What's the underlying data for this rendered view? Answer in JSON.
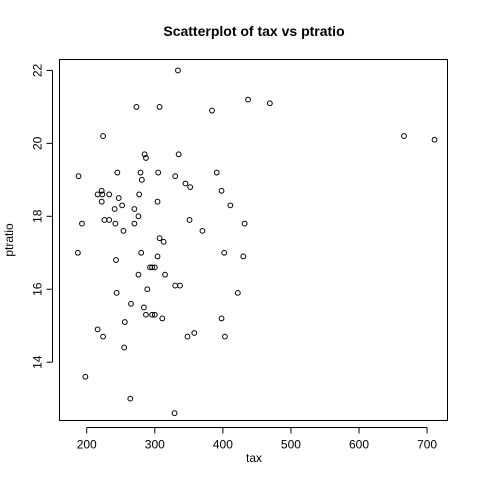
{
  "chart_data": {
    "type": "scatter",
    "title": "Scatterplot of tax vs ptratio",
    "xlabel": "tax",
    "ylabel": "ptratio",
    "xlim": [
      160,
      730
    ],
    "ylim": [
      12.4,
      22.3
    ],
    "xticks": [
      200,
      300,
      400,
      500,
      600,
      700
    ],
    "yticks": [
      14,
      16,
      18,
      20,
      22
    ],
    "grid": false,
    "points": [
      {
        "x": 187,
        "y": 17.0
      },
      {
        "x": 188,
        "y": 19.1
      },
      {
        "x": 193,
        "y": 17.8
      },
      {
        "x": 198,
        "y": 13.6
      },
      {
        "x": 216,
        "y": 14.9
      },
      {
        "x": 216,
        "y": 18.6
      },
      {
        "x": 222,
        "y": 18.4
      },
      {
        "x": 222,
        "y": 18.7
      },
      {
        "x": 223,
        "y": 18.6
      },
      {
        "x": 224,
        "y": 20.2
      },
      {
        "x": 224,
        "y": 14.7
      },
      {
        "x": 226,
        "y": 17.9
      },
      {
        "x": 233,
        "y": 17.9
      },
      {
        "x": 233,
        "y": 18.6
      },
      {
        "x": 241,
        "y": 18.2
      },
      {
        "x": 242,
        "y": 17.8
      },
      {
        "x": 243,
        "y": 16.8
      },
      {
        "x": 244,
        "y": 15.9
      },
      {
        "x": 245,
        "y": 19.2
      },
      {
        "x": 247,
        "y": 18.5
      },
      {
        "x": 252,
        "y": 18.3
      },
      {
        "x": 254,
        "y": 17.6
      },
      {
        "x": 255,
        "y": 14.4
      },
      {
        "x": 256,
        "y": 15.1
      },
      {
        "x": 264,
        "y": 13.0
      },
      {
        "x": 265,
        "y": 15.6
      },
      {
        "x": 270,
        "y": 17.8
      },
      {
        "x": 270,
        "y": 18.2
      },
      {
        "x": 273,
        "y": 21.0
      },
      {
        "x": 276,
        "y": 18.0
      },
      {
        "x": 276,
        "y": 16.4
      },
      {
        "x": 277,
        "y": 18.6
      },
      {
        "x": 279,
        "y": 19.2
      },
      {
        "x": 280,
        "y": 17.0
      },
      {
        "x": 281,
        "y": 19.0
      },
      {
        "x": 284,
        "y": 15.5
      },
      {
        "x": 285,
        "y": 19.7
      },
      {
        "x": 287,
        "y": 15.3
      },
      {
        "x": 287,
        "y": 19.6
      },
      {
        "x": 289,
        "y": 16.0
      },
      {
        "x": 293,
        "y": 16.6
      },
      {
        "x": 296,
        "y": 15.3
      },
      {
        "x": 296,
        "y": 16.6
      },
      {
        "x": 300,
        "y": 16.6
      },
      {
        "x": 300,
        "y": 15.3
      },
      {
        "x": 304,
        "y": 16.9
      },
      {
        "x": 304,
        "y": 18.4
      },
      {
        "x": 305,
        "y": 19.2
      },
      {
        "x": 307,
        "y": 21.0
      },
      {
        "x": 307,
        "y": 17.4
      },
      {
        "x": 311,
        "y": 15.2
      },
      {
        "x": 313,
        "y": 17.3
      },
      {
        "x": 315,
        "y": 16.4
      },
      {
        "x": 329,
        "y": 12.6
      },
      {
        "x": 330,
        "y": 16.1
      },
      {
        "x": 330,
        "y": 19.1
      },
      {
        "x": 334,
        "y": 22.0
      },
      {
        "x": 335,
        "y": 19.7
      },
      {
        "x": 337,
        "y": 16.1
      },
      {
        "x": 345,
        "y": 18.9
      },
      {
        "x": 348,
        "y": 14.7
      },
      {
        "x": 351,
        "y": 17.9
      },
      {
        "x": 352,
        "y": 18.8
      },
      {
        "x": 358,
        "y": 14.8
      },
      {
        "x": 370,
        "y": 17.6
      },
      {
        "x": 384,
        "y": 20.9
      },
      {
        "x": 391,
        "y": 19.2
      },
      {
        "x": 398,
        "y": 18.7
      },
      {
        "x": 398,
        "y": 15.2
      },
      {
        "x": 402,
        "y": 17.0
      },
      {
        "x": 403,
        "y": 14.7
      },
      {
        "x": 411,
        "y": 18.3
      },
      {
        "x": 422,
        "y": 15.9
      },
      {
        "x": 430,
        "y": 16.9
      },
      {
        "x": 432,
        "y": 17.8
      },
      {
        "x": 437,
        "y": 21.2
      },
      {
        "x": 469,
        "y": 21.1
      },
      {
        "x": 666,
        "y": 20.2
      },
      {
        "x": 711,
        "y": 20.1
      }
    ]
  }
}
